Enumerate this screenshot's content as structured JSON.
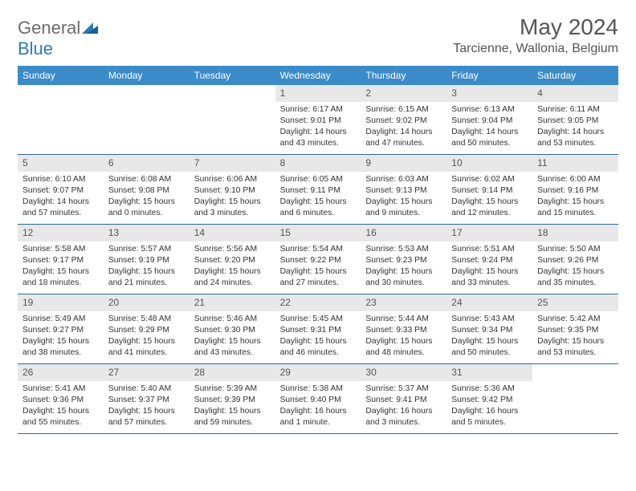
{
  "logo": {
    "general": "General",
    "blue": "Blue"
  },
  "title": {
    "month": "May 2024",
    "location": "Tarcienne, Wallonia, Belgium"
  },
  "colors": {
    "header_bg": "#3b8bc9",
    "border": "#2a6aa0",
    "daynum_bg": "#e8e8e8",
    "text": "#333333",
    "title_text": "#555555"
  },
  "weekdays": [
    "Sunday",
    "Monday",
    "Tuesday",
    "Wednesday",
    "Thursday",
    "Friday",
    "Saturday"
  ],
  "layout": {
    "first_weekday_index": 3,
    "total_days": 31
  },
  "days": {
    "1": {
      "sunrise": "6:17 AM",
      "sunset": "9:01 PM",
      "daylight": "14 hours and 43 minutes."
    },
    "2": {
      "sunrise": "6:15 AM",
      "sunset": "9:02 PM",
      "daylight": "14 hours and 47 minutes."
    },
    "3": {
      "sunrise": "6:13 AM",
      "sunset": "9:04 PM",
      "daylight": "14 hours and 50 minutes."
    },
    "4": {
      "sunrise": "6:11 AM",
      "sunset": "9:05 PM",
      "daylight": "14 hours and 53 minutes."
    },
    "5": {
      "sunrise": "6:10 AM",
      "sunset": "9:07 PM",
      "daylight": "14 hours and 57 minutes."
    },
    "6": {
      "sunrise": "6:08 AM",
      "sunset": "9:08 PM",
      "daylight": "15 hours and 0 minutes."
    },
    "7": {
      "sunrise": "6:06 AM",
      "sunset": "9:10 PM",
      "daylight": "15 hours and 3 minutes."
    },
    "8": {
      "sunrise": "6:05 AM",
      "sunset": "9:11 PM",
      "daylight": "15 hours and 6 minutes."
    },
    "9": {
      "sunrise": "6:03 AM",
      "sunset": "9:13 PM",
      "daylight": "15 hours and 9 minutes."
    },
    "10": {
      "sunrise": "6:02 AM",
      "sunset": "9:14 PM",
      "daylight": "15 hours and 12 minutes."
    },
    "11": {
      "sunrise": "6:00 AM",
      "sunset": "9:16 PM",
      "daylight": "15 hours and 15 minutes."
    },
    "12": {
      "sunrise": "5:58 AM",
      "sunset": "9:17 PM",
      "daylight": "15 hours and 18 minutes."
    },
    "13": {
      "sunrise": "5:57 AM",
      "sunset": "9:19 PM",
      "daylight": "15 hours and 21 minutes."
    },
    "14": {
      "sunrise": "5:56 AM",
      "sunset": "9:20 PM",
      "daylight": "15 hours and 24 minutes."
    },
    "15": {
      "sunrise": "5:54 AM",
      "sunset": "9:22 PM",
      "daylight": "15 hours and 27 minutes."
    },
    "16": {
      "sunrise": "5:53 AM",
      "sunset": "9:23 PM",
      "daylight": "15 hours and 30 minutes."
    },
    "17": {
      "sunrise": "5:51 AM",
      "sunset": "9:24 PM",
      "daylight": "15 hours and 33 minutes."
    },
    "18": {
      "sunrise": "5:50 AM",
      "sunset": "9:26 PM",
      "daylight": "15 hours and 35 minutes."
    },
    "19": {
      "sunrise": "5:49 AM",
      "sunset": "9:27 PM",
      "daylight": "15 hours and 38 minutes."
    },
    "20": {
      "sunrise": "5:48 AM",
      "sunset": "9:29 PM",
      "daylight": "15 hours and 41 minutes."
    },
    "21": {
      "sunrise": "5:46 AM",
      "sunset": "9:30 PM",
      "daylight": "15 hours and 43 minutes."
    },
    "22": {
      "sunrise": "5:45 AM",
      "sunset": "9:31 PM",
      "daylight": "15 hours and 46 minutes."
    },
    "23": {
      "sunrise": "5:44 AM",
      "sunset": "9:33 PM",
      "daylight": "15 hours and 48 minutes."
    },
    "24": {
      "sunrise": "5:43 AM",
      "sunset": "9:34 PM",
      "daylight": "15 hours and 50 minutes."
    },
    "25": {
      "sunrise": "5:42 AM",
      "sunset": "9:35 PM",
      "daylight": "15 hours and 53 minutes."
    },
    "26": {
      "sunrise": "5:41 AM",
      "sunset": "9:36 PM",
      "daylight": "15 hours and 55 minutes."
    },
    "27": {
      "sunrise": "5:40 AM",
      "sunset": "9:37 PM",
      "daylight": "15 hours and 57 minutes."
    },
    "28": {
      "sunrise": "5:39 AM",
      "sunset": "9:39 PM",
      "daylight": "15 hours and 59 minutes."
    },
    "29": {
      "sunrise": "5:38 AM",
      "sunset": "9:40 PM",
      "daylight": "16 hours and 1 minute."
    },
    "30": {
      "sunrise": "5:37 AM",
      "sunset": "9:41 PM",
      "daylight": "16 hours and 3 minutes."
    },
    "31": {
      "sunrise": "5:36 AM",
      "sunset": "9:42 PM",
      "daylight": "16 hours and 5 minutes."
    }
  },
  "labels": {
    "sunrise": "Sunrise:",
    "sunset": "Sunset:",
    "daylight": "Daylight:"
  }
}
